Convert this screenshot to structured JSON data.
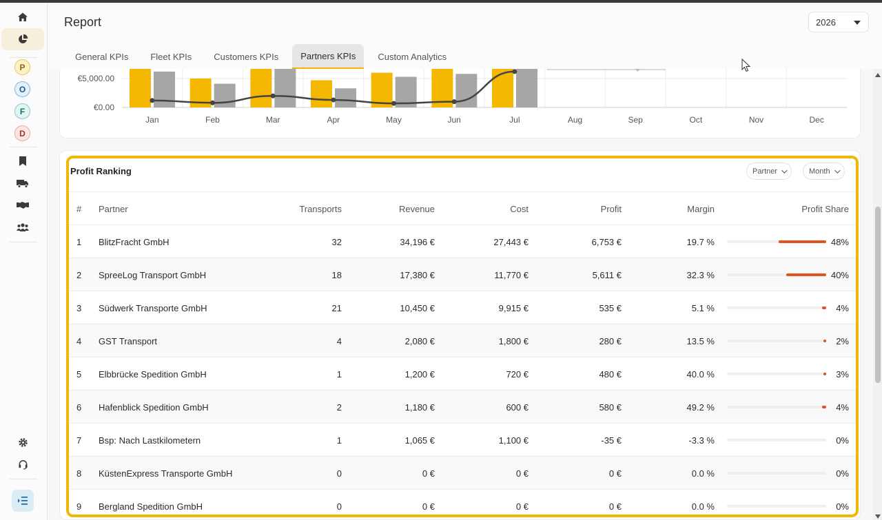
{
  "page": {
    "title": "Report",
    "year": "2026"
  },
  "rail": {
    "avatars": [
      {
        "letter": "P",
        "bg": "#fdf0cc",
        "fg": "#8a6a00",
        "border": "#f2c94c"
      },
      {
        "letter": "O",
        "bg": "#e4f1fb",
        "fg": "#1c5a88",
        "border": "#7fb8e0"
      },
      {
        "letter": "F",
        "bg": "#e3f5f3",
        "fg": "#1d6d66",
        "border": "#7fd0c6"
      },
      {
        "letter": "D",
        "bg": "#fbe6e3",
        "fg": "#9a3a2b",
        "border": "#f0a899"
      }
    ],
    "icons": [
      "home-icon",
      "pie-chart-icon",
      "bookmark-icon",
      "truck-icon",
      "handshake-icon",
      "users-icon",
      "gear-icon",
      "headset-icon",
      "menu-collapse-icon"
    ]
  },
  "tabs": [
    {
      "label": "General KPIs",
      "active": false
    },
    {
      "label": "Fleet KPIs",
      "active": false
    },
    {
      "label": "Customers KPIs",
      "active": false
    },
    {
      "label": "Partners KPIs",
      "active": true
    },
    {
      "label": "Custom Analytics",
      "active": false
    }
  ],
  "chart_data": {
    "type": "bar",
    "categories": [
      "Jan",
      "Feb",
      "Mar",
      "Apr",
      "May",
      "Jun",
      "Jul",
      "Aug",
      "Sep",
      "Oct",
      "Nov",
      "Dec"
    ],
    "series": [
      {
        "kind": "bar",
        "color": "#f5b800",
        "values": [
          7400,
          5000,
          7500,
          4700,
          6000,
          7300,
          8000,
          null,
          null,
          null,
          null,
          null
        ]
      },
      {
        "kind": "bar",
        "color": "#a6a6a6",
        "values": [
          6200,
          4100,
          7500,
          3300,
          5300,
          5800,
          7800,
          null,
          null,
          null,
          null,
          null
        ]
      },
      {
        "kind": "line",
        "color": "#444444",
        "values": [
          1200,
          800,
          2000,
          1300,
          700,
          1000,
          6200,
          null,
          null,
          null,
          null,
          null
        ]
      }
    ],
    "ylabel_ticks": [
      "€0.00",
      "€5,000.00"
    ],
    "ylim": [
      0,
      10000
    ]
  },
  "ranking": {
    "title": "Profit Ranking",
    "filters": [
      "Partner",
      "Month"
    ],
    "columns": [
      "#",
      "Partner",
      "Transports",
      "Revenue",
      "Cost",
      "Profit",
      "Margin",
      "Profit Share"
    ],
    "rows": [
      {
        "rank": "1",
        "partner": "BlitzFracht GmbH",
        "transports": "32",
        "revenue": "34,196 €",
        "cost": "27,443 €",
        "profit": "6,753 €",
        "margin": "19.7 %",
        "share": "48%",
        "share_value": 0.48
      },
      {
        "rank": "2",
        "partner": "SpreeLog Transport GmbH",
        "transports": "18",
        "revenue": "17,380 €",
        "cost": "11,770 €",
        "profit": "5,611 €",
        "margin": "32.3 %",
        "share": "40%",
        "share_value": 0.4
      },
      {
        "rank": "3",
        "partner": "Südwerk Transporte GmbH",
        "transports": "21",
        "revenue": "10,450 €",
        "cost": "9,915 €",
        "profit": "535 €",
        "margin": "5.1 %",
        "share": "4%",
        "share_value": 0.04
      },
      {
        "rank": "4",
        "partner": "GST Transport",
        "transports": "4",
        "revenue": "2,080 €",
        "cost": "1,800 €",
        "profit": "280 €",
        "margin": "13.5 %",
        "share": "2%",
        "share_value": 0.02
      },
      {
        "rank": "5",
        "partner": "Elbbrücke Spedition GmbH",
        "transports": "1",
        "revenue": "1,200 €",
        "cost": "720 €",
        "profit": "480 €",
        "margin": "40.0 %",
        "share": "3%",
        "share_value": 0.03
      },
      {
        "rank": "6",
        "partner": "Hafenblick Spedition GmbH",
        "transports": "2",
        "revenue": "1,180 €",
        "cost": "600 €",
        "profit": "580 €",
        "margin": "49.2 %",
        "share": "4%",
        "share_value": 0.04
      },
      {
        "rank": "7",
        "partner": "Bsp: Nach Lastkilometern",
        "transports": "1",
        "revenue": "1,065 €",
        "cost": "1,100 €",
        "profit": "-35 €",
        "margin": "-3.3 %",
        "share": "0%",
        "share_value": 0
      },
      {
        "rank": "8",
        "partner": "KüstenExpress Transporte GmbH",
        "transports": "0",
        "revenue": "0 €",
        "cost": "0 €",
        "profit": "0 €",
        "margin": "0.0 %",
        "share": "0%",
        "share_value": 0
      },
      {
        "rank": "9",
        "partner": "Bergland Spedition GmbH",
        "transports": "0",
        "revenue": "0 €",
        "cost": "0 €",
        "profit": "0 €",
        "margin": "0.0 %",
        "share": "0%",
        "share_value": 0
      }
    ]
  }
}
